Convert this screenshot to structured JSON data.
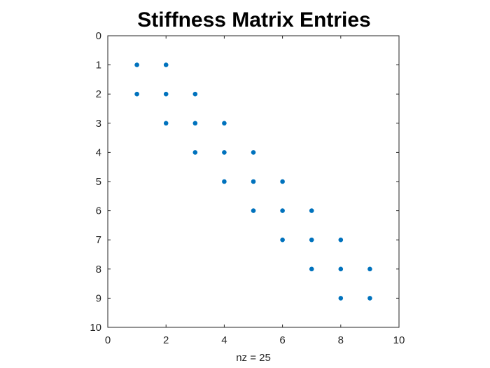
{
  "chart_data": {
    "type": "scatter",
    "title": "Stiffness Matrix Entries",
    "xlabel": "nz = 25",
    "ylabel": "",
    "xlim": [
      0,
      10
    ],
    "ylim": [
      0,
      10
    ],
    "y_reversed": true,
    "xticks": [
      0,
      2,
      4,
      6,
      8,
      10
    ],
    "yticks": [
      0,
      1,
      2,
      3,
      4,
      5,
      6,
      7,
      8,
      9,
      10
    ],
    "grid": false,
    "marker_color": "#0072BD",
    "points": [
      {
        "x": 1,
        "y": 1
      },
      {
        "x": 2,
        "y": 1
      },
      {
        "x": 1,
        "y": 2
      },
      {
        "x": 2,
        "y": 2
      },
      {
        "x": 3,
        "y": 2
      },
      {
        "x": 2,
        "y": 3
      },
      {
        "x": 3,
        "y": 3
      },
      {
        "x": 4,
        "y": 3
      },
      {
        "x": 3,
        "y": 4
      },
      {
        "x": 4,
        "y": 4
      },
      {
        "x": 5,
        "y": 4
      },
      {
        "x": 4,
        "y": 5
      },
      {
        "x": 5,
        "y": 5
      },
      {
        "x": 6,
        "y": 5
      },
      {
        "x": 5,
        "y": 6
      },
      {
        "x": 6,
        "y": 6
      },
      {
        "x": 7,
        "y": 6
      },
      {
        "x": 6,
        "y": 7
      },
      {
        "x": 7,
        "y": 7
      },
      {
        "x": 8,
        "y": 7
      },
      {
        "x": 7,
        "y": 8
      },
      {
        "x": 8,
        "y": 8
      },
      {
        "x": 9,
        "y": 8
      },
      {
        "x": 8,
        "y": 9
      },
      {
        "x": 9,
        "y": 9
      }
    ]
  }
}
